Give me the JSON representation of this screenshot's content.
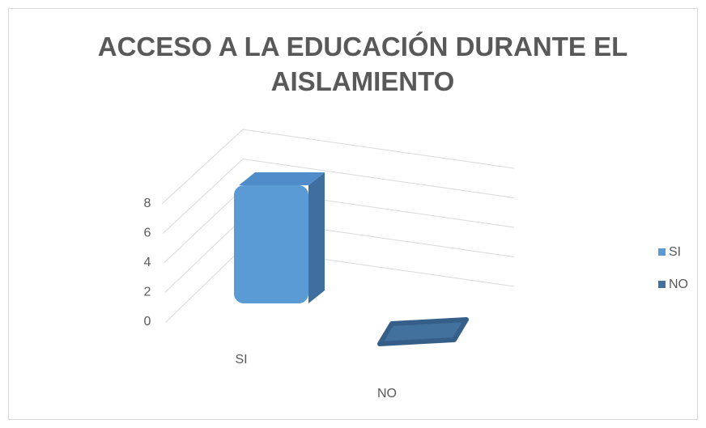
{
  "chart_data": {
    "type": "bar3d",
    "title": "ACCESO A LA EDUCACIÓN DURANTE EL AISLAMIENTO",
    "categories": [
      "SI",
      "NO"
    ],
    "values": [
      8,
      0
    ],
    "colors": [
      "#5b9bd5",
      "#41719c"
    ],
    "ylim": [
      0,
      8
    ],
    "yticks": [
      0,
      2,
      4,
      6,
      8
    ],
    "grid": true,
    "legend": "right"
  }
}
